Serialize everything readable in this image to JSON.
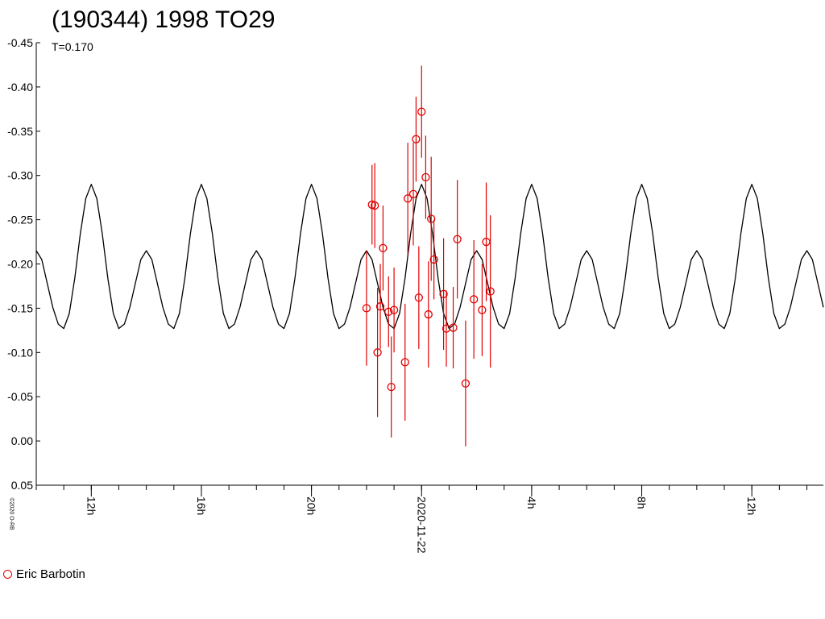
{
  "chart_data": {
    "type": "scatter",
    "title": "(190344) 1998 TO29",
    "subtitle": "T=0.170",
    "copyright": "©2020 O-RB",
    "y_axis": {
      "min": -0.45,
      "max": 0.05,
      "reversed": true,
      "ticks": [
        "-0.45",
        "-0.40",
        "-0.35",
        "-0.30",
        "-0.25",
        "-0.20",
        "-0.15",
        "-0.10",
        "-0.05",
        "0.00",
        "0.05"
      ],
      "tick_values": [
        -0.45,
        -0.4,
        -0.35,
        -0.3,
        -0.25,
        -0.2,
        -0.15,
        -0.1,
        -0.05,
        0.0,
        0.05
      ]
    },
    "x_axis": {
      "unit": "hours relative to 2020-11-22 00:00",
      "min": -14.0,
      "max": 14.6,
      "major_tick_hours": [
        -12,
        -8,
        -4,
        0,
        4,
        8,
        12
      ],
      "major_tick_labels": [
        "12h",
        "16h",
        "20h",
        "2020-11-22",
        "4h",
        "8h",
        "12h"
      ],
      "minor_step_hours": 1
    },
    "model_curve": {
      "description": "double-peaked light curve model",
      "period_hours": 3.97,
      "points_hours": [
        -14,
        -13.8,
        -13.6,
        -13.4,
        -13.2,
        -13,
        -12.8,
        -12.6,
        -12.4,
        -12.2,
        -12,
        -11.8,
        -11.6,
        -11.4,
        -11.2,
        -11,
        -10.8,
        -10.6,
        -10.4,
        -10.2,
        -10,
        -9.8,
        -9.6,
        -9.4,
        -9.2,
        -9,
        -8.8,
        -8.6,
        -8.4,
        -8.2,
        -8,
        -7.8,
        -7.6,
        -7.4,
        -7.2,
        -7,
        -6.8,
        -6.6,
        -6.4,
        -6.2,
        -6,
        -5.8,
        -5.6,
        -5.4,
        -5.2,
        -5,
        -4.8,
        -4.6,
        -4.4,
        -4.2,
        -4,
        -3.8,
        -3.6,
        -3.4,
        -3.2,
        -3,
        -2.8,
        -2.6,
        -2.4,
        -2.2,
        -2,
        -1.8,
        -1.6,
        -1.4,
        -1.2,
        -1,
        -0.8,
        -0.6,
        -0.4,
        -0.2,
        0,
        0.2,
        0.4,
        0.6,
        0.8,
        1,
        1.2,
        1.4,
        1.6,
        1.8,
        2,
        2.2,
        2.4,
        2.6,
        2.8,
        3,
        3.2,
        3.4,
        3.6,
        3.8,
        4,
        4.2,
        4.4,
        4.6,
        4.8,
        5,
        5.2,
        5.4,
        5.6,
        5.8,
        6,
        6.2,
        6.4,
        6.6,
        6.8,
        7,
        7.2,
        7.4,
        7.6,
        7.8,
        8,
        8.2,
        8.4,
        8.6,
        8.8,
        9,
        9.2,
        9.4,
        9.6,
        9.8,
        10,
        10.2,
        10.4,
        10.6,
        10.8,
        11,
        11.2,
        11.4,
        11.6,
        11.8,
        12,
        12.2,
        12.4,
        12.6,
        12.8,
        13,
        13.2,
        13.4,
        13.6,
        13.8,
        14,
        14.2,
        14.4,
        14.6
      ],
      "points_mag": [
        -0.215,
        -0.205,
        -0.178,
        -0.151,
        -0.132,
        -0.127,
        -0.144,
        -0.184,
        -0.234,
        -0.274,
        -0.29,
        -0.274,
        -0.234,
        -0.184,
        -0.144,
        -0.127,
        -0.132,
        -0.151,
        -0.178,
        -0.205,
        -0.215,
        -0.205,
        -0.178,
        -0.151,
        -0.132,
        -0.127,
        -0.144,
        -0.184,
        -0.234,
        -0.274,
        -0.29,
        -0.274,
        -0.234,
        -0.184,
        -0.144,
        -0.127,
        -0.132,
        -0.151,
        -0.178,
        -0.205,
        -0.215,
        -0.205,
        -0.178,
        -0.151,
        -0.132,
        -0.127,
        -0.144,
        -0.184,
        -0.234,
        -0.274,
        -0.29,
        -0.274,
        -0.234,
        -0.184,
        -0.144,
        -0.127,
        -0.132,
        -0.151,
        -0.178,
        -0.205,
        -0.215,
        -0.205,
        -0.178,
        -0.151,
        -0.132,
        -0.127,
        -0.144,
        -0.184,
        -0.234,
        -0.274,
        -0.29,
        -0.274,
        -0.234,
        -0.184,
        -0.144,
        -0.127,
        -0.132,
        -0.151,
        -0.178,
        -0.205,
        -0.215,
        -0.205,
        -0.178,
        -0.151,
        -0.132,
        -0.127,
        -0.144,
        -0.184,
        -0.234,
        -0.274,
        -0.29,
        -0.274,
        -0.234,
        -0.184,
        -0.144,
        -0.127,
        -0.132,
        -0.151,
        -0.178,
        -0.205,
        -0.215,
        -0.205,
        -0.178,
        -0.151,
        -0.132,
        -0.127,
        -0.144,
        -0.184,
        -0.234,
        -0.274,
        -0.29,
        -0.274,
        -0.234,
        -0.184,
        -0.144,
        -0.127,
        -0.132,
        -0.151,
        -0.178,
        -0.205,
        -0.215,
        -0.205,
        -0.178,
        -0.151,
        -0.132,
        -0.127,
        -0.144,
        -0.184,
        -0.234,
        -0.274,
        -0.29,
        -0.274,
        -0.234,
        -0.184,
        -0.144,
        -0.127,
        -0.132,
        -0.151,
        -0.178,
        -0.205,
        -0.215,
        -0.205,
        -0.178,
        -0.151
      ],
      "color": "#000000"
    },
    "series": [
      {
        "name": "Eric Barbotin",
        "color": "#e00000",
        "marker": "circle",
        "points": [
          {
            "x": -2.0,
            "y": -0.15,
            "err": 0.065
          },
          {
            "x": -1.8,
            "y": -0.267,
            "err": 0.045
          },
          {
            "x": -1.7,
            "y": -0.266,
            "err": 0.048
          },
          {
            "x": -1.6,
            "y": -0.1,
            "err": 0.073
          },
          {
            "x": -1.5,
            "y": -0.152,
            "err": 0.048
          },
          {
            "x": -1.4,
            "y": -0.218,
            "err": 0.048
          },
          {
            "x": -1.2,
            "y": -0.146,
            "err": 0.04
          },
          {
            "x": -1.1,
            "y": -0.061,
            "err": 0.057
          },
          {
            "x": -1.0,
            "y": -0.148,
            "err": 0.048
          },
          {
            "x": -0.6,
            "y": -0.089,
            "err": 0.066
          },
          {
            "x": -0.5,
            "y": -0.274,
            "err": 0.063
          },
          {
            "x": -0.3,
            "y": -0.279,
            "err": 0.058
          },
          {
            "x": -0.2,
            "y": -0.341,
            "err": 0.048
          },
          {
            "x": -0.1,
            "y": -0.162,
            "err": 0.058
          },
          {
            "x": 0.0,
            "y": -0.372,
            "err": 0.052
          },
          {
            "x": 0.15,
            "y": -0.298,
            "err": 0.047
          },
          {
            "x": 0.25,
            "y": -0.143,
            "err": 0.06
          },
          {
            "x": 0.35,
            "y": -0.251,
            "err": 0.07
          },
          {
            "x": 0.45,
            "y": -0.205,
            "err": 0.045
          },
          {
            "x": 0.8,
            "y": -0.166,
            "err": 0.063
          },
          {
            "x": 0.9,
            "y": -0.127,
            "err": 0.043
          },
          {
            "x": 1.15,
            "y": -0.128,
            "err": 0.046
          },
          {
            "x": 1.3,
            "y": -0.228,
            "err": 0.067
          },
          {
            "x": 1.6,
            "y": -0.065,
            "err": 0.071
          },
          {
            "x": 1.9,
            "y": -0.16,
            "err": 0.067
          },
          {
            "x": 2.2,
            "y": -0.148,
            "err": 0.052
          },
          {
            "x": 2.35,
            "y": -0.225,
            "err": 0.067
          },
          {
            "x": 2.5,
            "y": -0.169,
            "err": 0.086
          }
        ]
      }
    ],
    "grid": false,
    "legend_position": "bottom-left"
  },
  "legend": {
    "label": "Eric Barbotin"
  }
}
